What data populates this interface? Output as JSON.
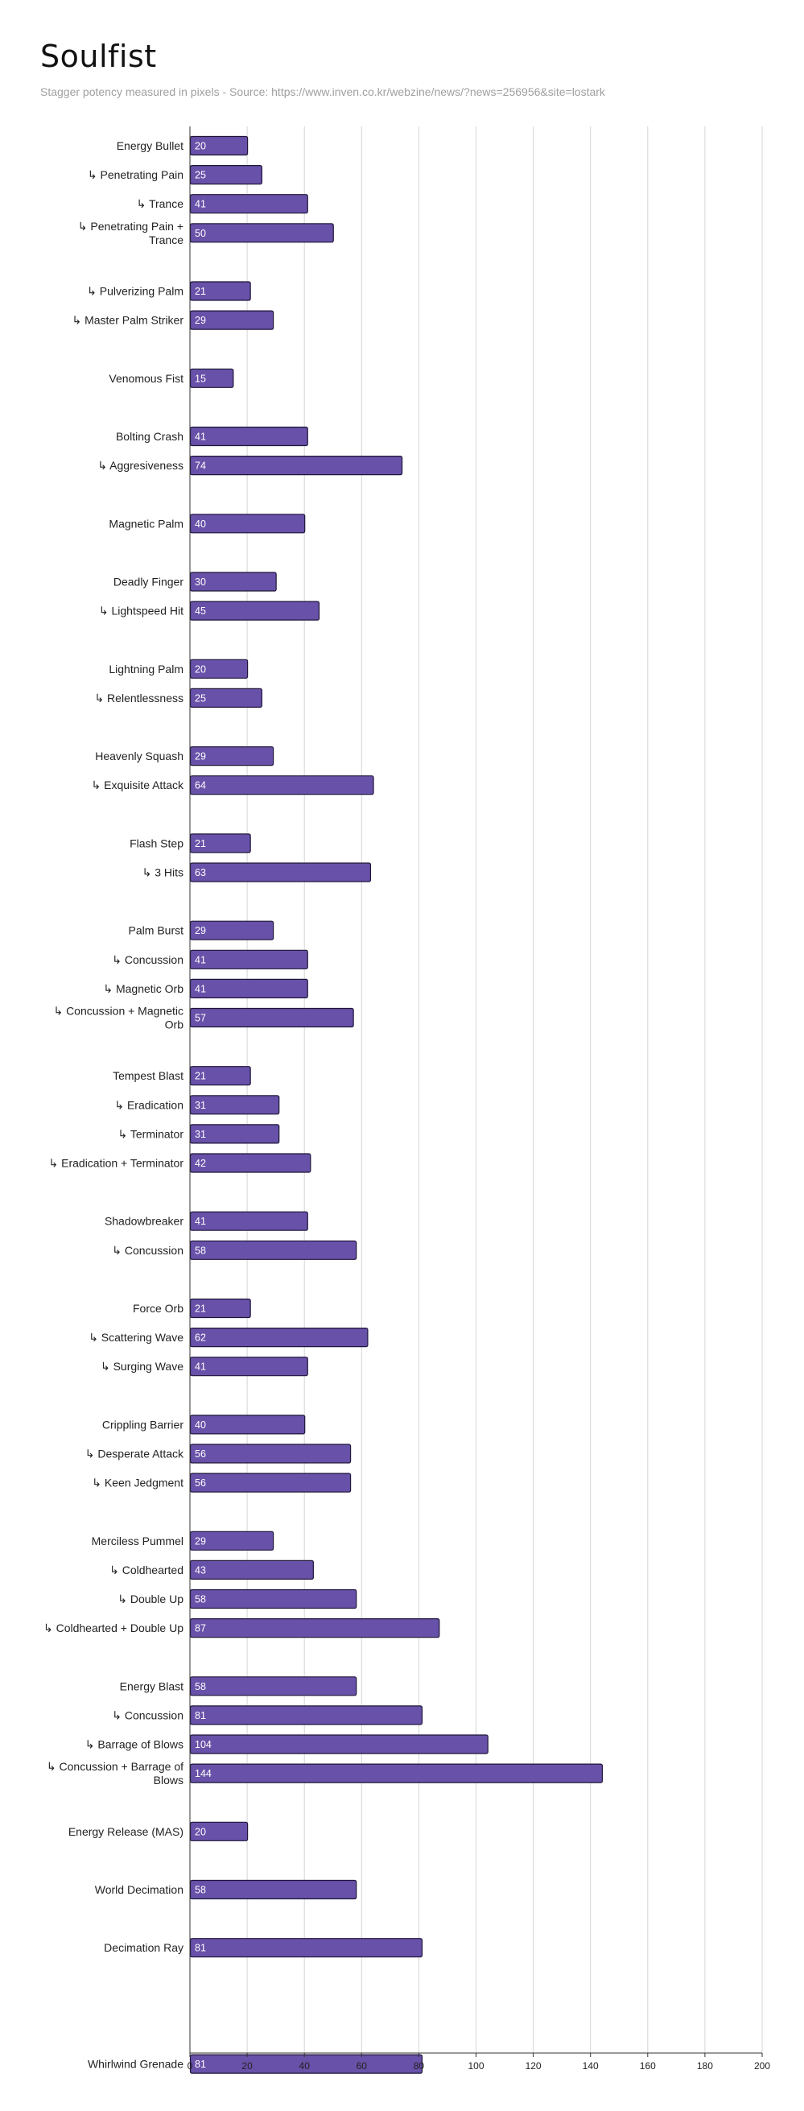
{
  "chart_data": {
    "type": "bar",
    "orientation": "horizontal",
    "title": "Soulfist",
    "subtitle": "Stagger potency measured in pixels - Source: https://www.inven.co.kr/webzine/news/?news=256956&site=lostark",
    "xlabel": "",
    "ylabel": "",
    "xlim": [
      0,
      200
    ],
    "x_ticks": [
      0,
      20,
      40,
      60,
      80,
      100,
      120,
      140,
      160,
      180,
      200
    ],
    "grid": true,
    "legend": "none",
    "bar_color": "#6851a8",
    "bar_border_color": "#1e1638",
    "grid_color": "#d6d6d6",
    "rows": [
      {
        "label": "Energy Bullet",
        "value": 20
      },
      {
        "label": "↳ Penetrating Pain",
        "value": 25
      },
      {
        "label": "↳ Trance",
        "value": 41
      },
      {
        "label": "↳ Penetrating Pain + Trance",
        "value": 50
      },
      {
        "label": "",
        "value": null
      },
      {
        "label": "↳ Pulverizing Palm",
        "value": 21
      },
      {
        "label": "↳ Master Palm Striker",
        "value": 29
      },
      {
        "label": "",
        "value": null
      },
      {
        "label": "Venomous Fist",
        "value": 15
      },
      {
        "label": "",
        "value": null
      },
      {
        "label": "Bolting Crash",
        "value": 41
      },
      {
        "label": "↳ Aggresiveness",
        "value": 74
      },
      {
        "label": "",
        "value": null
      },
      {
        "label": "Magnetic Palm",
        "value": 40
      },
      {
        "label": "",
        "value": null
      },
      {
        "label": "Deadly Finger",
        "value": 30
      },
      {
        "label": "↳ Lightspeed Hit",
        "value": 45
      },
      {
        "label": "",
        "value": null
      },
      {
        "label": "Lightning Palm",
        "value": 20
      },
      {
        "label": "↳ Relentlessness",
        "value": 25
      },
      {
        "label": "",
        "value": null
      },
      {
        "label": "Heavenly Squash",
        "value": 29
      },
      {
        "label": "↳ Exquisite Attack",
        "value": 64
      },
      {
        "label": "",
        "value": null
      },
      {
        "label": "Flash Step",
        "value": 21
      },
      {
        "label": "↳ 3 Hits",
        "value": 63
      },
      {
        "label": "",
        "value": null
      },
      {
        "label": "Palm Burst",
        "value": 29
      },
      {
        "label": "↳ Concussion",
        "value": 41
      },
      {
        "label": "↳ Magnetic Orb",
        "value": 41
      },
      {
        "label": "↳ Concussion + Magnetic Orb",
        "value": 57
      },
      {
        "label": "",
        "value": null
      },
      {
        "label": "Tempest Blast",
        "value": 21
      },
      {
        "label": "↳ Eradication",
        "value": 31
      },
      {
        "label": "↳ Terminator",
        "value": 31
      },
      {
        "label": "↳ Eradication + Terminator",
        "value": 42
      },
      {
        "label": "",
        "value": null
      },
      {
        "label": "Shadowbreaker",
        "value": 41
      },
      {
        "label": "↳ Concussion",
        "value": 58
      },
      {
        "label": "",
        "value": null
      },
      {
        "label": "Force Orb",
        "value": 21
      },
      {
        "label": "↳ Scattering Wave",
        "value": 62
      },
      {
        "label": "↳ Surging Wave",
        "value": 41
      },
      {
        "label": "",
        "value": null
      },
      {
        "label": "Crippling Barrier",
        "value": 40
      },
      {
        "label": "↳ Desperate Attack",
        "value": 56
      },
      {
        "label": "↳ Keen Jedgment",
        "value": 56
      },
      {
        "label": "",
        "value": null
      },
      {
        "label": "Merciless Pummel",
        "value": 29
      },
      {
        "label": "↳ Coldhearted",
        "value": 43
      },
      {
        "label": "↳ Double Up",
        "value": 58
      },
      {
        "label": "↳ Coldhearted + Double Up",
        "value": 87
      },
      {
        "label": "",
        "value": null
      },
      {
        "label": "Energy Blast",
        "value": 58
      },
      {
        "label": "↳ Concussion",
        "value": 81
      },
      {
        "label": "↳ Barrage of Blows",
        "value": 104
      },
      {
        "label": "↳ Concussion + Barrage of Blows",
        "value": 144
      },
      {
        "label": "",
        "value": null
      },
      {
        "label": "Energy Release (MAS)",
        "value": 20
      },
      {
        "label": "",
        "value": null
      },
      {
        "label": "World Decimation",
        "value": 58
      },
      {
        "label": "",
        "value": null
      },
      {
        "label": "Decimation Ray",
        "value": 81
      },
      {
        "label": "",
        "value": null
      },
      {
        "label": "",
        "value": null
      },
      {
        "label": "",
        "value": null
      },
      {
        "label": "Whirlwind Grenade",
        "value": 81
      }
    ]
  }
}
